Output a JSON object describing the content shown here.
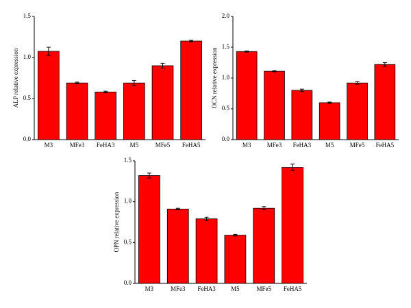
{
  "chart_data": [
    {
      "type": "bar",
      "y_label": "ALP relative expression",
      "categories": [
        "M3",
        "MFe3",
        "FeHA3",
        "M5",
        "MFe5",
        "FeHA5"
      ],
      "values": [
        1.075,
        0.69,
        0.58,
        0.69,
        0.9,
        1.2
      ],
      "errors": [
        0.05,
        0.01,
        0.01,
        0.03,
        0.03,
        0.01
      ],
      "color": "#ff0000",
      "ylim": [
        0,
        1.5
      ],
      "yticks": [
        {
          "value": 0,
          "label": "0.0"
        },
        0.5,
        {
          "value": 1,
          "label": "1.0"
        },
        1.5
      ]
    },
    {
      "type": "bar",
      "y_label": "OCN relative expression",
      "categories": [
        "M3",
        "MFe3",
        "FeHA3",
        "M5",
        "MFe5",
        "FeHA5"
      ],
      "values": [
        1.43,
        1.11,
        0.8,
        0.6,
        0.92,
        1.22
      ],
      "errors": [
        0.01,
        0.01,
        0.02,
        0.01,
        0.02,
        0.03
      ],
      "color": "#ff0000",
      "ylim": [
        0,
        2
      ],
      "yticks": [
        {
          "value": 0,
          "label": "0.0"
        },
        0.5,
        {
          "value": 1,
          "label": "1.0"
        },
        1.5,
        {
          "value": 2,
          "label": "2.0"
        }
      ]
    },
    {
      "type": "bar",
      "y_label": "OPN relative expression",
      "categories": [
        "M3",
        "MFe3",
        "FeHA3",
        "M5",
        "MFe5",
        "FeHA5"
      ],
      "values": [
        1.32,
        0.91,
        0.79,
        0.59,
        0.92,
        1.42
      ],
      "errors": [
        0.03,
        0.01,
        0.02,
        0.01,
        0.02,
        0.04
      ],
      "color": "#ff0000",
      "ylim": [
        0,
        1.5
      ],
      "yticks": [
        {
          "value": 0,
          "label": "0.0"
        },
        0.5,
        {
          "value": 1,
          "label": "1.0"
        },
        1.5
      ]
    }
  ]
}
